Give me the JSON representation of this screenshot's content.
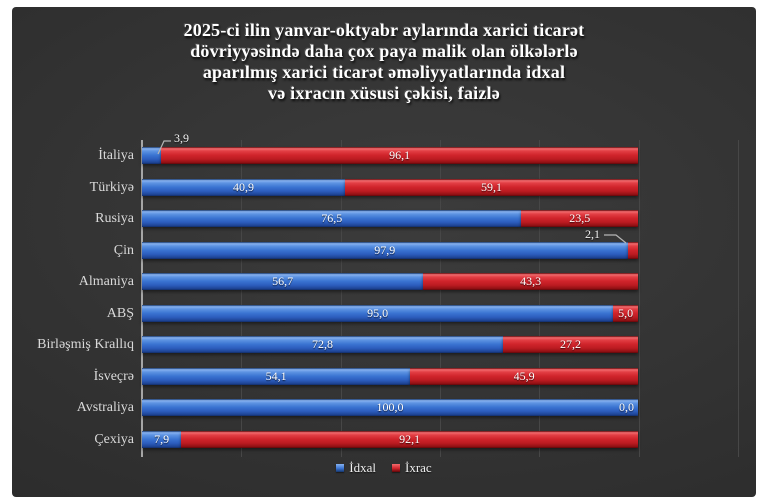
{
  "title": {
    "lines": [
      "2025-ci ilin yanvar-oktyabr aylarında xarici ticarət",
      "dövriyyəsində daha çox paya malik olan ölkələrlə",
      "aparılmış xarici ticarət əməliyyatlarında idxal",
      "və ixracın xüsusi çəkisi, faizlə"
    ]
  },
  "chart_data": {
    "type": "bar",
    "orientation": "horizontal",
    "stacked": true,
    "title": "2025-ci ilin yanvar-oktyabr aylarında xarici ticarət dövriyyəsində daha çox paya malik olan ölkələrlə aparılmış xarici ticarət əməliyyatlarında idxal və ixracın xüsusi çəkisi, faizlə",
    "categories": [
      "İtaliya",
      "Türkiyə",
      "Rusiya",
      "Çin",
      "Almaniya",
      "ABŞ",
      "Birləşmiş Krallıq",
      "İsveçrə",
      "Avstraliya",
      "Çexiya"
    ],
    "series": [
      {
        "name": "İdxal",
        "color": "#2e6bc8",
        "values": [
          3.9,
          40.9,
          76.5,
          97.9,
          56.7,
          95.0,
          72.8,
          54.1,
          100.0,
          7.9
        ]
      },
      {
        "name": "İxrac",
        "color": "#cc1d24",
        "values": [
          96.1,
          59.1,
          23.5,
          2.1,
          43.3,
          5.0,
          27.2,
          45.9,
          0.0,
          92.1
        ]
      }
    ],
    "value_labels": [
      [
        "3,9",
        "96,1"
      ],
      [
        "40,9",
        "59,1"
      ],
      [
        "76,5",
        "23,5"
      ],
      [
        "97,9",
        "2,1"
      ],
      [
        "56,7",
        "43,3"
      ],
      [
        "95,0",
        "5,0"
      ],
      [
        "72,8",
        "27,2"
      ],
      [
        "54,1",
        "45,9"
      ],
      [
        "100,0",
        "0,0"
      ],
      [
        "7,9",
        "92,1"
      ]
    ],
    "callouts": [
      {
        "category": "İtaliya",
        "series": "İdxal",
        "text": "3,9"
      },
      {
        "category": "Çin",
        "series": "İxrac",
        "text": "2,1"
      }
    ],
    "xlim": [
      0,
      120
    ],
    "gridline_step": 20,
    "grid": true,
    "legend_position": "bottom",
    "unit": "faiz (%)"
  },
  "legend": {
    "items": [
      {
        "label": "İdxal",
        "color": "#2e6bc8"
      },
      {
        "label": "İxrac",
        "color": "#cc1d24"
      }
    ]
  },
  "colors": {
    "background": "#313131",
    "idxal_blue": "#2e6bc8",
    "ixrac_red": "#cc1d24",
    "axis_line": "#a6a6a6",
    "gridline": "#474747",
    "text": "#ffffff",
    "category_text": "#d9d9d9"
  }
}
